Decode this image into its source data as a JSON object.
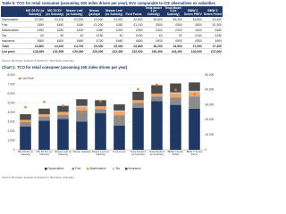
{
  "table": {
    "title": "Table 5: TCO for retail consumer (assuming 10K miles driven per year), EVs comparable to ICE alternatives ex subsidies",
    "header": [
      "",
      "MG ZS EV (w Subsidy)",
      "MG ZS EV (ex Subsidy)",
      "Nissan Leaf (w Subsidy)",
      "Nissan Qashqai",
      "Nissan Leaf (ex Subsidy)",
      "Ford Focus",
      "Tesla Model 3 (w Subsidy)",
      "Tesla Model 3 (ex Subsidy)",
      "BMW 3 Series PHEV",
      "BMW 3 Series Petrol"
    ],
    "rows": [
      [
        "Depreciation",
        "£2,500",
        "£3,100",
        "£3,300",
        "£3,000",
        "£3,900",
        "£2,600",
        "£4,500",
        "£5,200",
        "£4,800",
        "£4,400"
      ],
      [
        "Fuel",
        "£450",
        "£450",
        "£450",
        "£1,200",
        "£450",
        "£1,100",
        "£500",
        "£500",
        "£800",
        "£1,300"
      ],
      [
        "Maintenance",
        "£250",
        "£250",
        "£300",
        "£350",
        "£300",
        "£350",
        "£300",
        "£300",
        "£400",
        "£450"
      ],
      [
        "Tax",
        "£0",
        "£0",
        "£0",
        "£150",
        "£0",
        "£150",
        "£0",
        "£0",
        "£140",
        "£150"
      ],
      [
        "Insurance",
        "£600",
        "£600",
        "£650",
        "£700",
        "£650",
        "£650",
        "£900",
        "£900",
        "£950",
        "£900"
      ],
      [
        "Total",
        "£3,800",
        "£4,400",
        "£4,700",
        "£5,400",
        "£5,300",
        "£4,850",
        "£6,200",
        "£6,900",
        "£7,090",
        "£7,200"
      ],
      [
        "List price",
        "£28,495",
        "£31,995",
        "£29,490",
        "£25,000",
        "£32,490",
        "£22,000",
        "£40,490",
        "£43,490",
        "£40,000",
        "£37,000"
      ]
    ],
    "source": "Source: Bernstein analysis & Sanford C. Bernstein estimates"
  },
  "chart_data": {
    "type": "bar",
    "stacked": true,
    "title": "Chart 1: TCO for retail consumer (assuming 10K miles driven per year)",
    "categories": [
      "MG ZS EV (w Subsidy)",
      "MG ZS EV (ex Subsidy)",
      "Nissan Leaf (w Subsidy)",
      "Nissan Qashqai",
      "Nissan Leaf (ex Subsidy)",
      "Ford Focus",
      "Tesla Model 3 (w Subsidy)",
      "Tesla Model 3 (ex Subsidy)",
      "BMW 3 Series PHEV",
      "BMW 3 Series Petrol"
    ],
    "series": [
      {
        "name": "Depreciation",
        "color": "#1f3864",
        "values": [
          2500,
          3100,
          3300,
          3000,
          3900,
          2600,
          4500,
          5200,
          4800,
          4400
        ]
      },
      {
        "name": "Fuel",
        "color": "#8c8c8c",
        "values": [
          450,
          450,
          450,
          1200,
          450,
          1100,
          500,
          500,
          800,
          1300
        ]
      },
      {
        "name": "Maintenance",
        "color": "#f4a460",
        "values": [
          250,
          250,
          300,
          350,
          300,
          350,
          300,
          300,
          400,
          450
        ]
      },
      {
        "name": "Tax",
        "color": "#c9c9c9",
        "values": [
          0,
          0,
          0,
          150,
          0,
          150,
          0,
          0,
          140,
          150
        ]
      },
      {
        "name": "Insurance",
        "color": "#4d4d4d",
        "values": [
          600,
          600,
          650,
          700,
          650,
          650,
          900,
          900,
          950,
          900
        ]
      },
      {
        "name": "List Price",
        "color": "#ed7d31",
        "axis": "y2",
        "type": "scatter",
        "values": [
          28495,
          31995,
          29490,
          25000,
          32490,
          22000,
          40490,
          43490,
          40000,
          37000
        ]
      }
    ],
    "ylim": [
      0,
      8000
    ],
    "yticks": [
      0,
      {
        "value": 1000,
        "label": "1,000"
      },
      {
        "value": 2000,
        "label": "2,000"
      },
      {
        "value": 3000,
        "label": "3,000"
      },
      {
        "value": 4000,
        "label": "4,000"
      },
      {
        "value": 5000,
        "label": "5,000"
      },
      {
        "value": 6000,
        "label": "6,000"
      },
      {
        "value": 7000,
        "label": "7,000"
      },
      {
        "value": 8000,
        "label": "8,000"
      }
    ],
    "y2lim": [
      0,
      50000
    ],
    "y2ticks": [
      0,
      {
        "value": 10000,
        "label": "10,000"
      },
      {
        "value": 20000,
        "label": "20,000"
      },
      {
        "value": 30000,
        "label": "30,000"
      },
      {
        "value": 40000,
        "label": "40,000"
      },
      {
        "value": 50000,
        "label": "50,000"
      }
    ],
    "grid": true,
    "source": "Source: Bernstein analysis & Sanford C. Bernstein estimates"
  }
}
